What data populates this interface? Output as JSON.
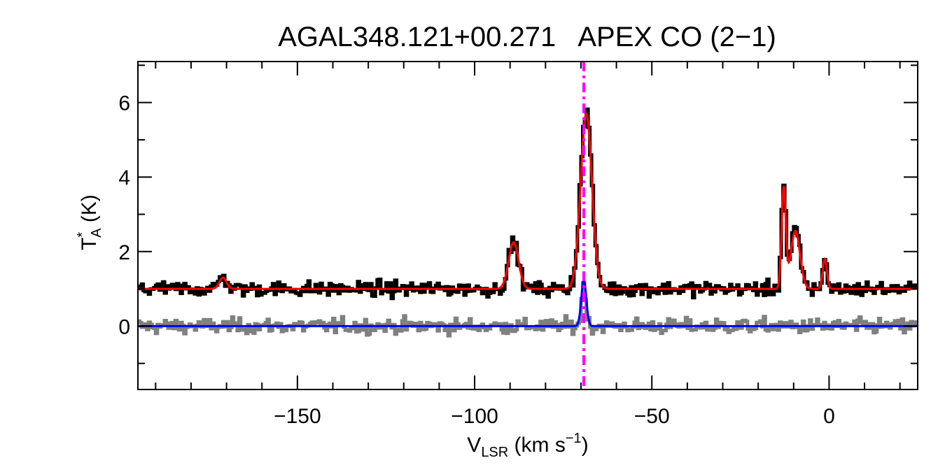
{
  "chart_data": {
    "type": "line",
    "title": "AGAL348.121+00.271   APEX CO (2−1)",
    "xlabel": {
      "main": "V",
      "sub": "LSR",
      "rest": " (km s",
      "sup": "−1",
      "close": ")"
    },
    "ylabel": {
      "main": "T",
      "sup": "*",
      "sub": "A",
      "rest": " (K)"
    },
    "xlim": [
      -195,
      25
    ],
    "ylim": [
      -1.7,
      7.1
    ],
    "xticks": [
      -150,
      -100,
      -50,
      0
    ],
    "xtick_labels": [
      "−150",
      "−100",
      "−50",
      "0"
    ],
    "yticks": [
      0,
      2,
      4,
      6
    ],
    "ytick_labels": [
      "0",
      "2",
      "4",
      "6"
    ],
    "x_minor_step": 10,
    "y_minor_step": 1,
    "grid": false,
    "reference_line": {
      "x": -69.2,
      "color": "#ff00ff",
      "style": "dash-dot"
    },
    "colors": {
      "observed": "#000000",
      "model": "#ff0000",
      "residual": "#808080",
      "component": "#0000ff",
      "reference": "#ff00ff"
    },
    "series": [
      {
        "role": "observed",
        "style": "histogram",
        "baseline": 1.0,
        "noise": 0.2,
        "channel_width": 0.5,
        "peaks": [
          [
            -171,
            0.35,
            1.0
          ],
          [
            -89,
            1.25,
            1.4
          ],
          [
            -68.5,
            4.8,
            1.6
          ],
          [
            -12.8,
            2.8,
            0.6
          ],
          [
            -9.5,
            1.6,
            1.3
          ],
          [
            -1.2,
            0.85,
            0.6
          ]
        ]
      },
      {
        "role": "model",
        "style": "line",
        "baseline": 1.0,
        "peaks": [
          [
            -171,
            0.3,
            1.0
          ],
          [
            -89,
            1.25,
            1.4
          ],
          [
            -68.5,
            4.7,
            1.6
          ],
          [
            -12.8,
            2.7,
            0.6
          ],
          [
            -9.5,
            1.55,
            1.3
          ],
          [
            -1.2,
            0.8,
            0.6
          ]
        ]
      },
      {
        "role": "residual",
        "style": "histogram",
        "baseline": 0.0,
        "noise": 0.2,
        "channel_width": 0.5,
        "peaks": [
          [
            -69.2,
            1.1,
            0.6
          ]
        ]
      },
      {
        "role": "component",
        "style": "line",
        "baseline": 0.0,
        "peaks": [
          [
            -69.2,
            1.25,
            0.7
          ]
        ]
      }
    ]
  }
}
